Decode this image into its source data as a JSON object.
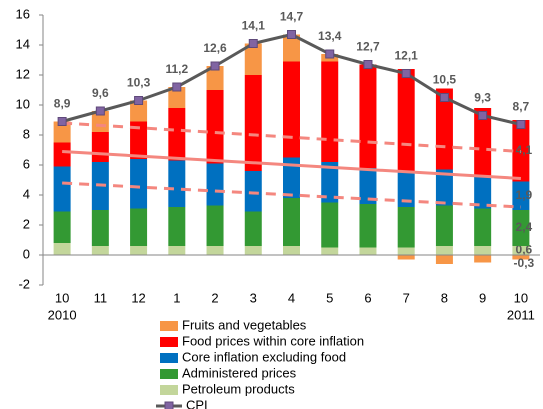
{
  "chart_data": {
    "type": "stacked_bar_line",
    "categories": [
      "10",
      "11",
      "12",
      "1",
      "2",
      "3",
      "4",
      "5",
      "6",
      "7",
      "8",
      "9",
      "10"
    ],
    "category_sublabels": [
      "2010",
      null,
      null,
      null,
      null,
      null,
      null,
      null,
      null,
      null,
      null,
      null,
      "2011"
    ],
    "ylim": [
      -2,
      16
    ],
    "yticks": [
      -2,
      0,
      2,
      4,
      6,
      8,
      10,
      12,
      14,
      16
    ],
    "series": [
      {
        "name": "Fruits and vegetables",
        "color": "#f79646",
        "values": [
          1.4,
          1.4,
          1.4,
          1.4,
          1.6,
          2.1,
          1.8,
          0.5,
          0,
          -0.3,
          -0.6,
          -0.5,
          -0.3
        ],
        "value_labels": [
          null,
          null,
          null,
          null,
          null,
          null,
          null,
          null,
          null,
          null,
          null,
          null,
          "-0,3"
        ]
      },
      {
        "name": "Food prices within core inflation",
        "color": "#ff0000",
        "values": [
          1.6,
          2.0,
          2.5,
          3.5,
          4.9,
          6.4,
          6.4,
          6.7,
          6.9,
          6.9,
          5.4,
          4.6,
          4.1
        ],
        "value_labels": [
          null,
          null,
          null,
          null,
          null,
          null,
          null,
          null,
          null,
          null,
          null,
          null,
          "4,1"
        ]
      },
      {
        "name": "Core inflation excluding food",
        "color": "#0070c0",
        "values": [
          3.0,
          3.2,
          3.3,
          3.1,
          2.8,
          2.7,
          2.7,
          2.7,
          2.4,
          2.3,
          2.4,
          2.1,
          1.9
        ],
        "value_labels": [
          null,
          null,
          null,
          null,
          null,
          null,
          null,
          null,
          null,
          null,
          null,
          null,
          "1,9"
        ]
      },
      {
        "name": "Administered prices",
        "color": "#339933",
        "values": [
          2.1,
          2.4,
          2.5,
          2.6,
          2.7,
          2.3,
          3.2,
          3.0,
          2.9,
          2.7,
          2.7,
          2.5,
          2.4
        ],
        "value_labels": [
          null,
          null,
          null,
          null,
          null,
          null,
          null,
          null,
          null,
          null,
          null,
          null,
          "2,4"
        ]
      },
      {
        "name": "Petroleum products",
        "color": "#c3d69b",
        "values": [
          0.8,
          0.6,
          0.6,
          0.6,
          0.6,
          0.6,
          0.6,
          0.5,
          0.5,
          0.5,
          0.6,
          0.6,
          0.6
        ],
        "value_labels": [
          null,
          null,
          null,
          null,
          null,
          null,
          null,
          null,
          null,
          null,
          null,
          null,
          "0,6"
        ]
      }
    ],
    "line": {
      "name": "CPI",
      "color": "#595959",
      "marker_color": "#8064a2",
      "values": [
        8.9,
        9.6,
        10.3,
        11.2,
        12.6,
        14.1,
        14.7,
        13.4,
        12.7,
        12.1,
        10.5,
        9.3,
        8.7
      ],
      "value_labels": [
        "8,9",
        "9,6",
        "10,3",
        "11,2",
        "12,6",
        "14,1",
        "14,7",
        "13,4",
        "12,7",
        "12,1",
        "10,5",
        "9,3",
        "8,7"
      ]
    },
    "trend_lines": [
      {
        "color": "#f4877f",
        "dashed": true,
        "values": [
          8.8,
          6.9
        ]
      },
      {
        "color": "#f4877f",
        "dashed": false,
        "values": [
          6.9,
          5.1
        ]
      },
      {
        "color": "#f4877f",
        "dashed": true,
        "values": [
          4.8,
          3.2
        ]
      }
    ]
  }
}
